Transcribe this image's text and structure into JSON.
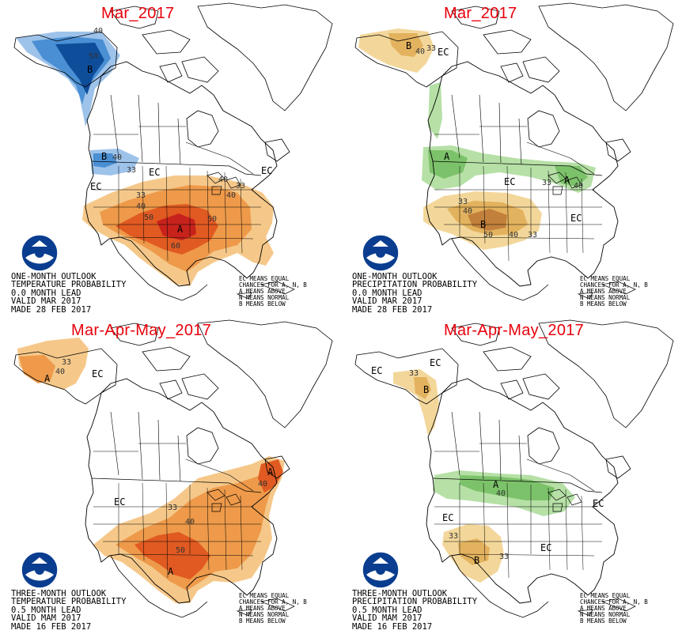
{
  "colors": {
    "blue_light": "#9ec3ea",
    "blue_mid": "#4a8fd3",
    "blue_dark": "#0e4d9a",
    "orange_light": "#f5c88a",
    "orange_mid": "#ee9a4a",
    "orange_dark": "#e05a22",
    "red_dark": "#c8221c",
    "tan_light": "#f3d79a",
    "tan_mid": "#e3b25e",
    "brown": "#c2803c",
    "green_light": "#b6e0a6",
    "green_mid": "#7cc26a",
    "title_red": "#e8000b"
  },
  "legend_lines": [
    "EC MEANS EQUAL",
    "CHANCES FOR A, N, B",
    "A MEANS ABOVE",
    "N MEANS NORMAL",
    "B MEANS BELOW"
  ],
  "panels": [
    {
      "title": "Mar_2017",
      "caption": [
        "ONE-MONTH OUTLOOK",
        "TEMPERATURE PROBABILITY",
        "0.0 MONTH LEAD",
        "VALID MAR 2017",
        "MADE 28 FEB 2017"
      ],
      "map_labels": [
        "40",
        "50",
        "B",
        "B",
        "40",
        "33",
        "EC",
        "EC",
        "EC",
        "33",
        "40",
        "50",
        "50",
        "A",
        "60",
        "33",
        "40",
        "40"
      ]
    },
    {
      "title": "Mar_2017",
      "caption": [
        "ONE-MONTH OUTLOOK",
        "PRECIPITATION PROBABILITY",
        "0.0 MONTH LEAD",
        "VALID MAR 2017",
        "MADE 28 FEB 2017"
      ],
      "map_labels": [
        "B",
        "40",
        "33",
        "EC",
        "A",
        "33",
        "EC",
        "A",
        "40",
        "33",
        "40",
        "B",
        "50",
        "40",
        "33",
        "EC"
      ]
    },
    {
      "title": "Mar-Apr-May_2017",
      "caption": [
        "THREE-MONTH OUTLOOK",
        "TEMPERATURE PROBABILITY",
        "0.5 MONTH LEAD",
        "VALID MAM 2017",
        "MADE 16 FEB 2017"
      ],
      "map_labels": [
        "33",
        "40",
        "A",
        "EC",
        "A",
        "EC",
        "33",
        "40",
        "50",
        "A",
        "40"
      ]
    },
    {
      "title": "Mar-Apr-May_2017",
      "caption": [
        "THREE-MONTH OUTLOOK",
        "PRECIPITATION PROBABILITY",
        "0.5 MONTH LEAD",
        "VALID MAM 2017",
        "MADE 16 FEB 2017"
      ],
      "map_labels": [
        "EC",
        "33",
        "EC",
        "B",
        "A",
        "40",
        "EC",
        "EC",
        "33",
        "B",
        "33",
        "EC"
      ]
    }
  ]
}
